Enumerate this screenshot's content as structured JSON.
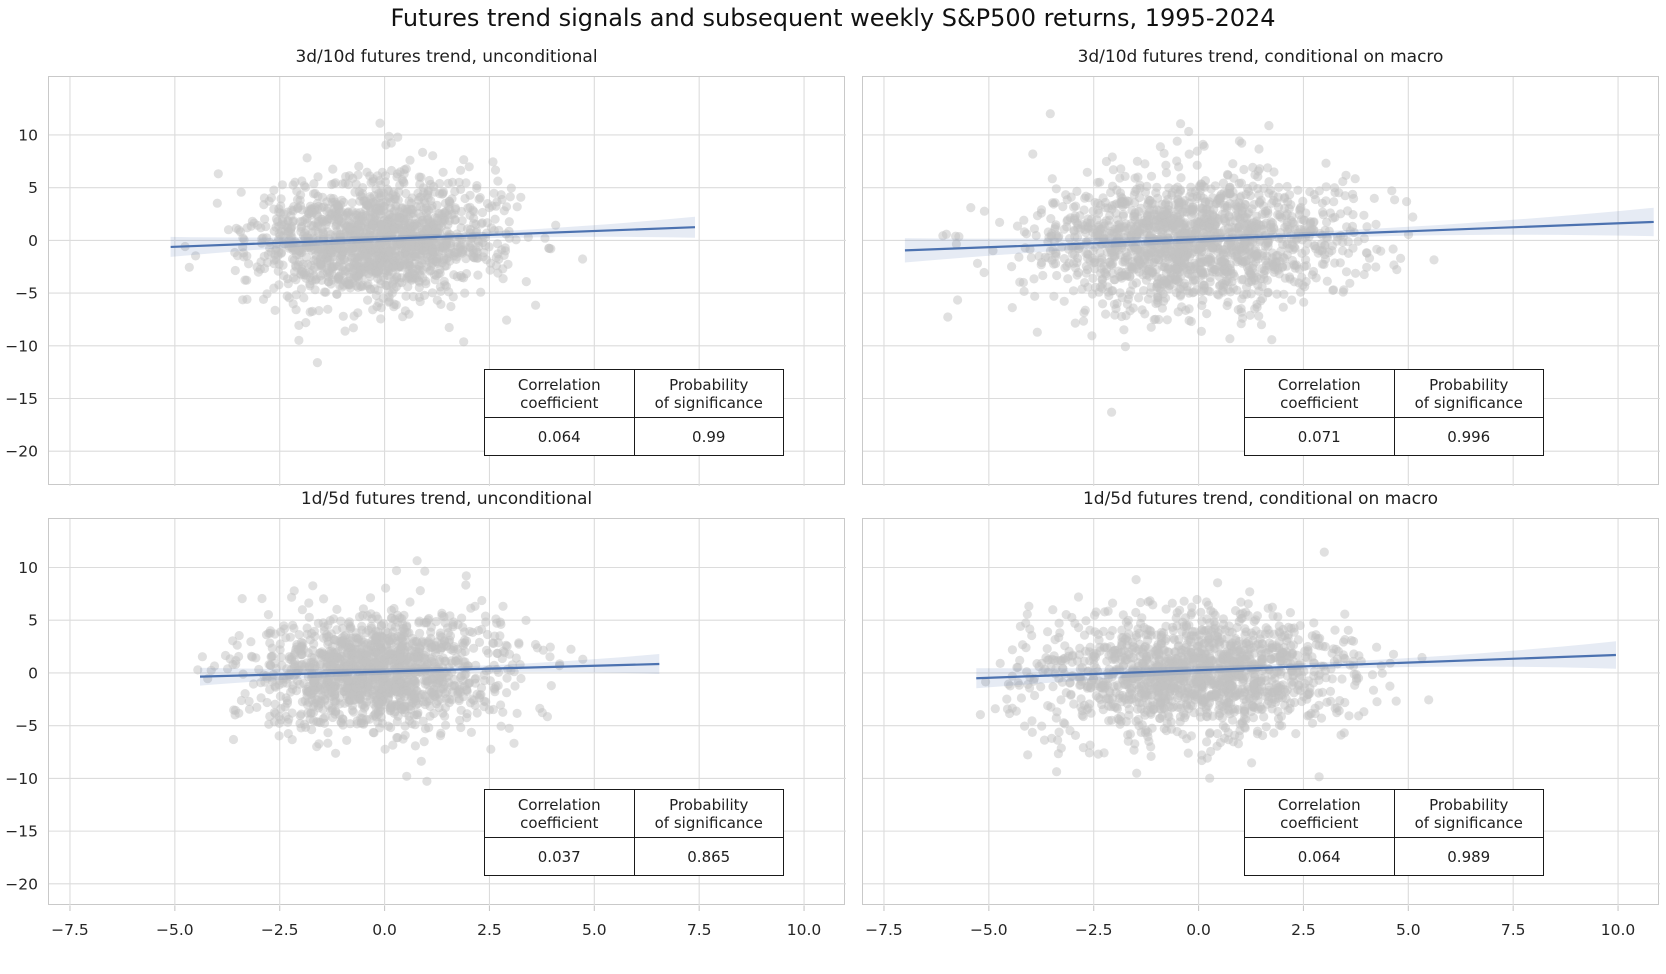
{
  "figure": {
    "title": "Futures trend signals and subsequent weekly S&P500 returns, 1995-2024"
  },
  "table_labels": {
    "col1_line1": "Correlation",
    "col1_line2": "coefficient",
    "col2_line1": "Probability",
    "col2_line2": "of significance"
  },
  "axes": {
    "xlim": [
      -8.0,
      11.0
    ],
    "x_ticks": [
      -7.5,
      -5.0,
      -2.5,
      0.0,
      2.5,
      5.0,
      7.5,
      10.0
    ],
    "x_tick_labels": [
      "−7.5",
      "−5.0",
      "−2.5",
      "0.0",
      "2.5",
      "5.0",
      "7.5",
      "10.0"
    ],
    "y_ticks": [
      10,
      5,
      0,
      -5,
      -10,
      -15,
      -20
    ],
    "y_tick_labels": [
      "10",
      "5",
      "0",
      "−5",
      "−10",
      "−15",
      "−20"
    ],
    "grid": true,
    "x_tick_labels_shown_on": "bottom row only",
    "y_tick_labels_shown_on": "left column only"
  },
  "chart_data": [
    {
      "type": "scatter",
      "title": "3d/10d futures trend, unconditional",
      "stats": {
        "correlation_coefficient": "0.064",
        "probability_of_significance": "0.99"
      },
      "ylim": [
        -23.3,
        15.5
      ],
      "regression_line": {
        "x_start": -5.1,
        "y_start": -0.62,
        "x_end": 7.4,
        "y_end": 1.25
      },
      "confidence_band": {
        "half_width_start": 0.95,
        "half_width_mid": 0.28,
        "half_width_end": 1.0
      },
      "scatter_cloud": {
        "n": 1500,
        "x_center": -0.2,
        "x_sd": 1.45,
        "x_min": -5.2,
        "x_max": 7.5,
        "y_sd": 2.85
      }
    },
    {
      "type": "scatter",
      "title": "3d/10d futures trend, conditional on macro",
      "stats": {
        "correlation_coefficient": "0.071",
        "probability_of_significance": "0.996"
      },
      "ylim": [
        -23.3,
        15.5
      ],
      "regression_line": {
        "x_start": -7.0,
        "y_start": -0.95,
        "x_end": 10.85,
        "y_end": 1.75
      },
      "confidence_band": {
        "half_width_start": 1.15,
        "half_width_mid": 0.3,
        "half_width_end": 1.35
      },
      "scatter_cloud": {
        "n": 1600,
        "x_center": -0.1,
        "x_sd": 1.85,
        "x_min": -7.1,
        "x_max": 10.9,
        "y_sd": 2.95
      }
    },
    {
      "type": "scatter",
      "title": "1d/5d futures trend, unconditional",
      "stats": {
        "correlation_coefficient": "0.037",
        "probability_of_significance": "0.865"
      },
      "ylim": [
        -22.1,
        14.6
      ],
      "regression_line": {
        "x_start": -4.4,
        "y_start": -0.35,
        "x_end": 6.55,
        "y_end": 0.85
      },
      "confidence_band": {
        "half_width_start": 0.85,
        "half_width_mid": 0.28,
        "half_width_end": 0.95
      },
      "scatter_cloud": {
        "n": 1400,
        "x_center": -0.15,
        "x_sd": 1.45,
        "x_min": -4.5,
        "x_max": 6.6,
        "y_sd": 2.8
      }
    },
    {
      "type": "scatter",
      "title": "1d/5d futures trend, conditional on macro",
      "stats": {
        "correlation_coefficient": "0.064",
        "probability_of_significance": "0.989"
      },
      "ylim": [
        -22.1,
        14.6
      ],
      "regression_line": {
        "x_start": -5.3,
        "y_start": -0.5,
        "x_end": 9.95,
        "y_end": 1.7
      },
      "confidence_band": {
        "half_width_start": 0.95,
        "half_width_mid": 0.3,
        "half_width_end": 1.3
      },
      "scatter_cloud": {
        "n": 1500,
        "x_center": -0.1,
        "x_sd": 1.8,
        "x_min": -5.4,
        "x_max": 10.0,
        "y_sd": 2.85
      }
    }
  ],
  "colors": {
    "regression_line": "#4c72b0",
    "confidence_band": "#4c72b0",
    "scatter_dot": "#c2c2c2",
    "gridline": "#dcdcdc",
    "frame": "#c9c9c9",
    "text": "#262626"
  }
}
